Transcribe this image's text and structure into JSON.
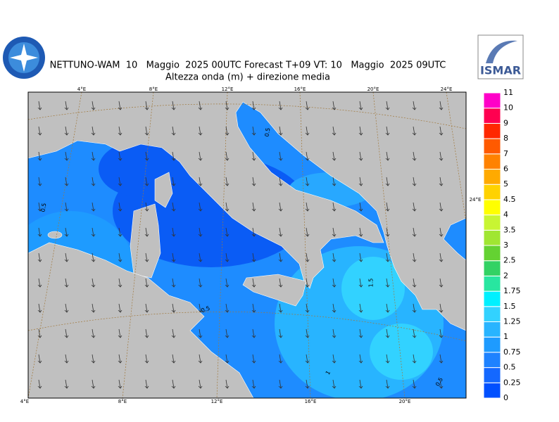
{
  "header": {
    "title": "NETTUNO-WAM  10   Maggio  2025 00UTC Forecast T+09 VT: 10   Maggio  2025 09UTC",
    "subtitle": "Altezza onda (m) + direzione media",
    "logo_right": "ISMAR"
  },
  "graticule": {
    "top": [
      "4°E",
      "8°E",
      "12°E",
      "16°E",
      "20°E",
      "24°E"
    ],
    "bottom": [
      "4°E",
      "8°E",
      "12°E",
      "16°E",
      "20°E"
    ],
    "right": [
      "24°E"
    ]
  },
  "contour_labels": [
    "0.5",
    "0.5",
    "0.5",
    "1.5",
    "1",
    "0.5"
  ],
  "colorbar": {
    "levels": [
      0,
      0.25,
      0.5,
      0.75,
      1,
      1.25,
      1.5,
      1.75,
      2,
      2.5,
      3,
      3.5,
      4,
      4.5,
      5,
      6,
      7,
      8,
      9,
      10,
      11
    ],
    "colors": [
      "#0050ff",
      "#1468ff",
      "#1e82ff",
      "#1e9bff",
      "#28b4ff",
      "#32d2ff",
      "#00f0ff",
      "#28e6a0",
      "#32d264",
      "#64d232",
      "#a0e632",
      "#c8f532",
      "#ffff00",
      "#ffd200",
      "#ffaa00",
      "#ff8200",
      "#ff5a00",
      "#ff2800",
      "#ff0050",
      "#ff00c8"
    ]
  }
}
